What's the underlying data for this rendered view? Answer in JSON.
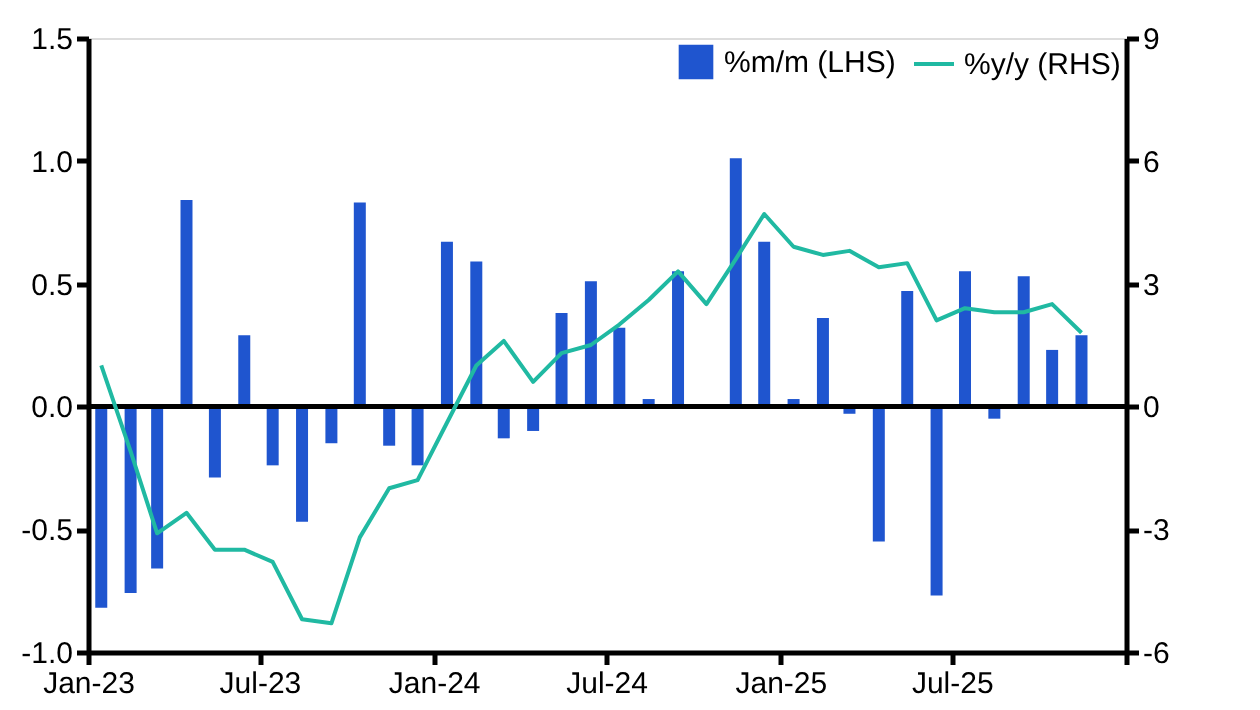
{
  "chart_data": {
    "type": "bar",
    "x": [
      "2023-01-15",
      "2023-02-15",
      "2023-03-15",
      "2023-04-15",
      "2023-05-15",
      "2023-06-15",
      "2023-07-15",
      "2023-08-15",
      "2023-09-15",
      "2023-10-15",
      "2023-11-15",
      "2023-12-15",
      "2024-01-15",
      "2024-02-15",
      "2024-03-15",
      "2024-04-15",
      "2024-05-15",
      "2024-06-15",
      "2024-07-15",
      "2024-08-15",
      "2024-09-15",
      "2024-10-15",
      "2024-11-15",
      "2024-12-15",
      "2025-01-15",
      "2025-02-15",
      "2025-03-15",
      "2025-04-15",
      "2025-05-15",
      "2025-06-15",
      "2025-07-15",
      "2025-08-15",
      "2025-09-15",
      "2025-10-15",
      "2025-11-15"
    ],
    "series": [
      {
        "name": "%m/m (LHS)",
        "type": "bar",
        "color": "#1f55cf",
        "values": [
          -0.82,
          -0.76,
          -0.66,
          0.84,
          -0.29,
          0.29,
          -0.24,
          -0.47,
          -0.15,
          0.83,
          -0.16,
          -0.24,
          0.67,
          0.59,
          -0.13,
          -0.1,
          0.38,
          0.51,
          0.32,
          0.03,
          0.55,
          0,
          1.01,
          0.67,
          0.03,
          0.36,
          -0.03,
          -0.55,
          0.47,
          -0.77,
          0.55,
          -0.05,
          0.53,
          0.23,
          0.29
        ]
      },
      {
        "name": "%y/y (RHS)",
        "type": "line",
        "axis": "y2",
        "color": "#20b9a2",
        "values": [
          1.0,
          -1.1,
          -3.1,
          -2.6,
          -3.5,
          -3.5,
          -3.8,
          -5.2,
          -5.3,
          -3.2,
          -2.0,
          -1.8,
          -0.4,
          1.0,
          1.6,
          0.6,
          1.3,
          1.5,
          2.0,
          2.6,
          3.3,
          2.5,
          3.6,
          4.7,
          3.9,
          3.7,
          3.8,
          3.4,
          3.5,
          2.1,
          2.4,
          2.3,
          2.3,
          2.5,
          1.8
        ]
      }
    ],
    "xlim": [
      "2023-01",
      "2026-01"
    ],
    "xticks": [
      {
        "value": "2023-01",
        "label": "Jan-23"
      },
      {
        "value": "2023-07",
        "label": "Jul-23"
      },
      {
        "value": "2024-01",
        "label": "Jan-24"
      },
      {
        "value": "2024-07",
        "label": "Jul-24"
      },
      {
        "value": "2025-01",
        "label": "Jan-25"
      },
      {
        "value": "2025-07",
        "label": "Jul-25"
      },
      {
        "value": "2026-01",
        "label": null
      }
    ],
    "ylim": [
      -1.0,
      1.5
    ],
    "yticks": [
      {
        "value": -1.0,
        "label": "-1.0"
      },
      {
        "value": -0.5,
        "label": "-0.5"
      },
      {
        "value": 0.0,
        "label": "0.0"
      },
      {
        "value": 0.5,
        "label": "0.5"
      },
      {
        "value": 1.0,
        "label": "1.0"
      },
      {
        "value": 1.5,
        "label": "1.5"
      }
    ],
    "y2lim": [
      -6,
      9
    ],
    "y2ticks": [
      -6,
      -3,
      0,
      3,
      6,
      9
    ],
    "ref_lines": [
      {
        "axis": "y",
        "value": 0,
        "color": "#000000"
      }
    ],
    "legend": "top right",
    "grid": false,
    "marker": "none",
    "line_style": "solid"
  }
}
